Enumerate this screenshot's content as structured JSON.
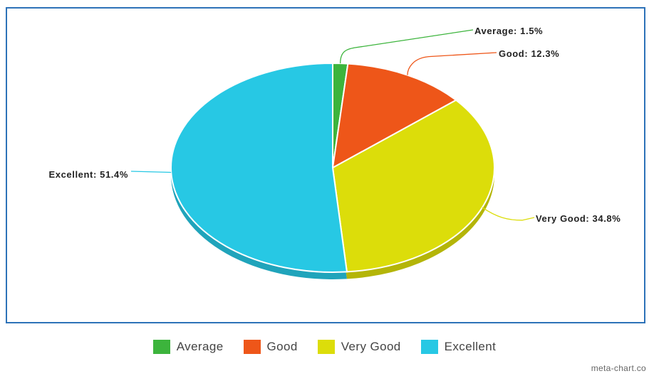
{
  "chart_data": {
    "type": "pie",
    "categories": [
      "Average",
      "Good",
      "Very Good",
      "Excellent"
    ],
    "values": [
      1.5,
      12.3,
      34.8,
      51.4
    ],
    "labels": [
      "Average: 1.5%",
      "Good: 12.3%",
      "Very Good: 34.8%",
      "Excellent: 51.4%"
    ],
    "colors": [
      "#3cb43c",
      "#ee5619",
      "#dcdd0a",
      "#27c8e4"
    ],
    "legend_position": "bottom"
  },
  "watermark": "meta-chart.co"
}
